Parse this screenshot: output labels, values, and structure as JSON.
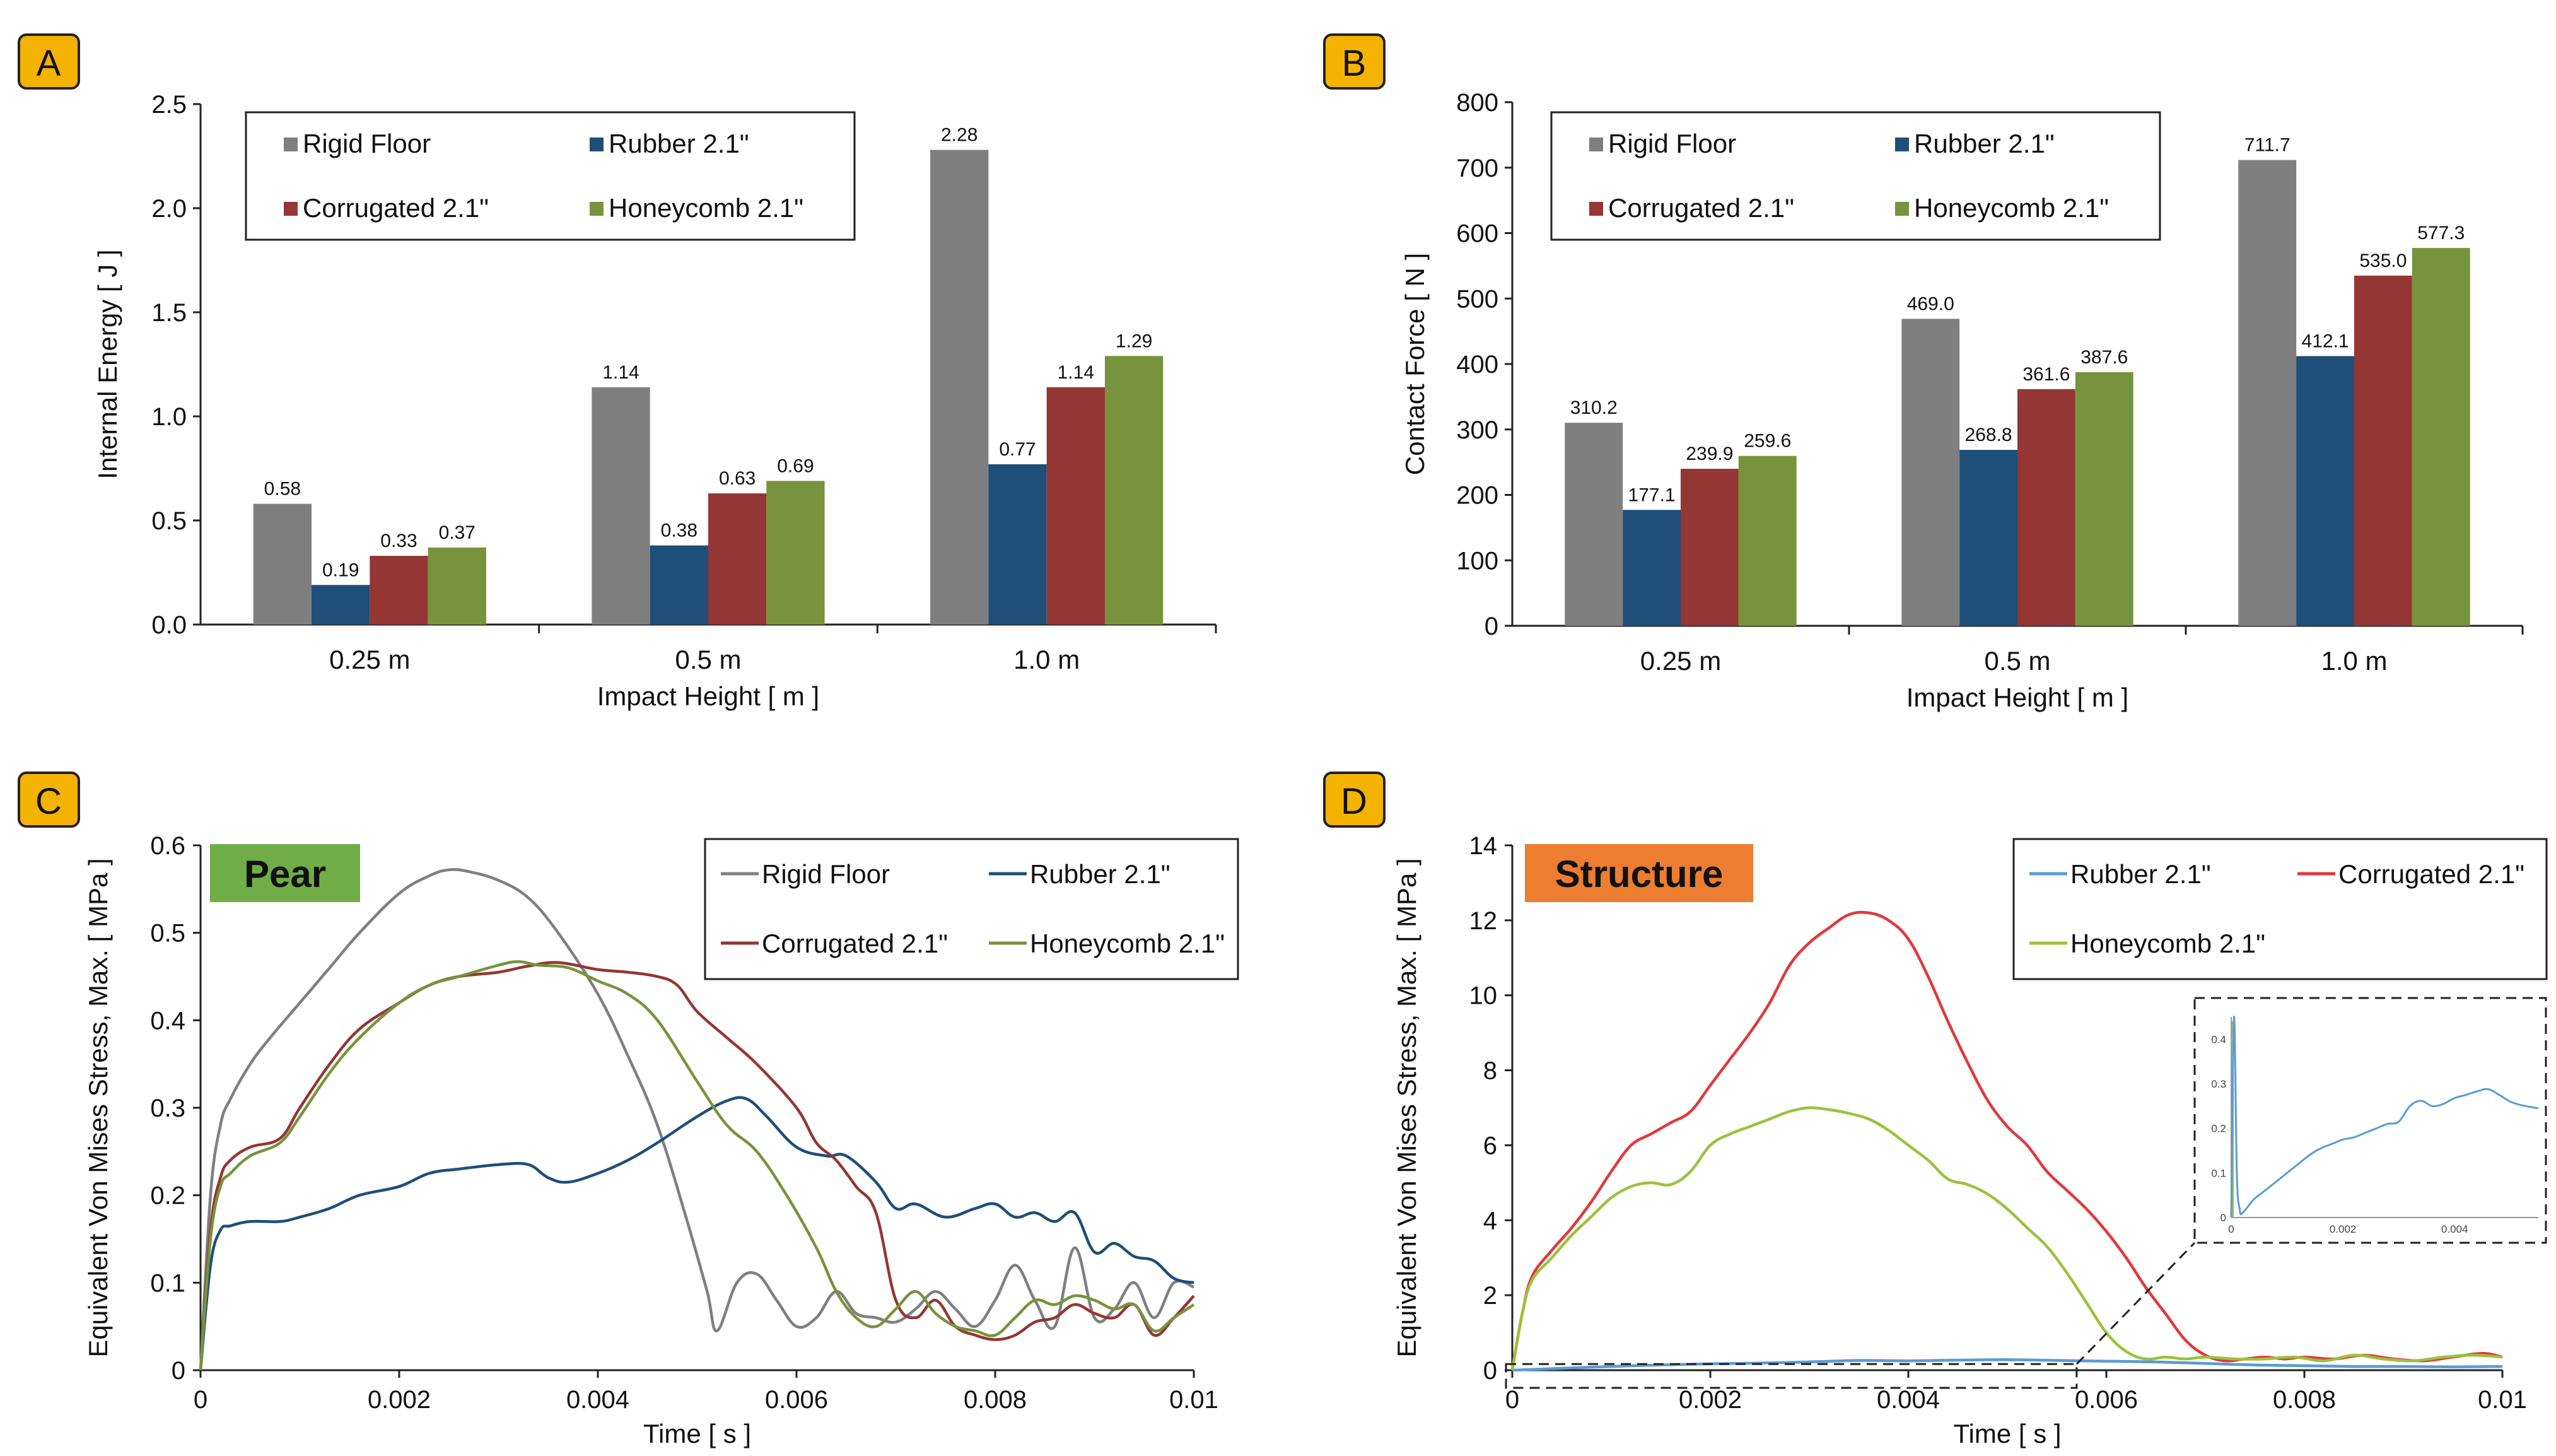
{
  "colors": {
    "rigid": "#7f7f7f",
    "rubber": "#1f4e79",
    "corrugated": "#943634",
    "honeycomb": "#77933c",
    "rubber_line_d": "#5b9bd5",
    "corrugated_line_d": "#e0393b",
    "honeycomb_line_d": "#9bc23c",
    "badge_yellow": "#f5b301",
    "pear_badge": "#70ad47",
    "structure_badge": "#ed7d31"
  },
  "panels": {
    "a": {
      "letter": "A"
    },
    "b": {
      "letter": "B"
    },
    "c": {
      "letter": "C",
      "badge": "Pear"
    },
    "d": {
      "letter": "D",
      "badge": "Structure"
    }
  },
  "chart_data": [
    {
      "id": "A",
      "type": "bar",
      "title": "",
      "xlabel": "Impact Height [ m ]",
      "ylabel": "Internal Energy [ J ]",
      "ylim": [
        0,
        2.5
      ],
      "yticks": [
        "0.0",
        "0.5",
        "1.0",
        "1.5",
        "2.0",
        "2.5"
      ],
      "categories": [
        "0.25 m",
        "0.5 m",
        "1.0 m"
      ],
      "legend": "top-left",
      "series": [
        {
          "name": "Rigid Floor",
          "color_key": "rigid",
          "values": [
            0.58,
            1.14,
            2.28
          ],
          "labels": [
            "0.58",
            "1.14",
            "2.28"
          ]
        },
        {
          "name": "Rubber 2.1\"",
          "color_key": "rubber",
          "values": [
            0.19,
            0.38,
            0.77
          ],
          "labels": [
            "0.19",
            "0.38",
            "0.77"
          ]
        },
        {
          "name": "Corrugated 2.1\"",
          "color_key": "corrugated",
          "values": [
            0.33,
            0.63,
            1.14
          ],
          "labels": [
            "0.33",
            "0.63",
            "1.14"
          ]
        },
        {
          "name": "Honeycomb 2.1\"",
          "color_key": "honeycomb",
          "values": [
            0.37,
            0.69,
            1.29
          ],
          "labels": [
            "0.37",
            "0.69",
            "1.29"
          ]
        }
      ]
    },
    {
      "id": "B",
      "type": "bar",
      "title": "",
      "xlabel": "Impact Height [ m ]",
      "ylabel": "Contact Force [ N ]",
      "ylim": [
        0,
        800
      ],
      "yticks": [
        "0",
        "100",
        "200",
        "300",
        "400",
        "500",
        "600",
        "700",
        "800"
      ],
      "categories": [
        "0.25 m",
        "0.5 m",
        "1.0 m"
      ],
      "legend": "top-left",
      "series": [
        {
          "name": "Rigid Floor",
          "color_key": "rigid",
          "values": [
            310.2,
            469.0,
            711.7
          ],
          "labels": [
            "310.2",
            "469.0",
            "711.7"
          ]
        },
        {
          "name": "Rubber 2.1\"",
          "color_key": "rubber",
          "values": [
            177.1,
            268.8,
            412.1
          ],
          "labels": [
            "177.1",
            "268.8",
            "412.1"
          ]
        },
        {
          "name": "Corrugated 2.1\"",
          "color_key": "corrugated",
          "values": [
            239.9,
            361.6,
            535.0
          ],
          "labels": [
            "239.9",
            "361.6",
            "535.0"
          ]
        },
        {
          "name": "Honeycomb 2.1\"",
          "color_key": "honeycomb",
          "values": [
            259.6,
            387.6,
            577.3
          ],
          "labels": [
            "259.6",
            "387.6",
            "577.3"
          ]
        }
      ]
    },
    {
      "id": "C",
      "type": "line",
      "title": "Pear",
      "xlabel": "Time [ s ]",
      "ylabel": "Equivalent Von Mises Stress, Max. [ MPa ]",
      "xlim": [
        0,
        0.01
      ],
      "ylim": [
        0,
        0.6
      ],
      "xticks": [
        "0",
        "0.002",
        "0.004",
        "0.006",
        "0.008",
        "0.01"
      ],
      "yticks": [
        "0",
        "0.1",
        "0.2",
        "0.3",
        "0.4",
        "0.5",
        "0.6"
      ],
      "legend": "top-right",
      "series": [
        {
          "name": "Rigid Floor",
          "color_key": "rigid",
          "x": [
            0,
            0.0001,
            0.0002,
            0.0003,
            0.0005,
            0.0007,
            0.001,
            0.0013,
            0.0016,
            0.002,
            0.0023,
            0.0025,
            0.0027,
            0.003,
            0.0033,
            0.0036,
            0.004,
            0.0043,
            0.0046,
            0.0049,
            0.0051,
            0.0052,
            0.0054,
            0.0056,
            0.0058,
            0.006,
            0.0062,
            0.0064,
            0.0066,
            0.0068,
            0.007,
            0.0072,
            0.0074,
            0.0076,
            0.0078,
            0.008,
            0.0082,
            0.0084,
            0.0086,
            0.0088,
            0.009,
            0.0092,
            0.0094,
            0.0096,
            0.0098,
            0.01
          ],
          "y": [
            0,
            0.2,
            0.28,
            0.31,
            0.35,
            0.38,
            0.42,
            0.46,
            0.5,
            0.545,
            0.565,
            0.572,
            0.57,
            0.56,
            0.54,
            0.5,
            0.43,
            0.36,
            0.28,
            0.17,
            0.09,
            0.045,
            0.1,
            0.11,
            0.08,
            0.05,
            0.06,
            0.09,
            0.065,
            0.06,
            0.055,
            0.07,
            0.09,
            0.07,
            0.05,
            0.08,
            0.12,
            0.08,
            0.05,
            0.14,
            0.06,
            0.07,
            0.1,
            0.06,
            0.1,
            0.095
          ]
        },
        {
          "name": "Rubber 2.1\"",
          "color_key": "rubber",
          "x": [
            0,
            0.0001,
            0.0002,
            0.0003,
            0.0005,
            0.0008,
            0.001,
            0.0013,
            0.0016,
            0.002,
            0.0023,
            0.0026,
            0.003,
            0.0033,
            0.0035,
            0.0037,
            0.004,
            0.0043,
            0.0046,
            0.005,
            0.0053,
            0.0055,
            0.0057,
            0.006,
            0.0063,
            0.0065,
            0.0068,
            0.007,
            0.0072,
            0.0075,
            0.0078,
            0.008,
            0.0082,
            0.0084,
            0.0086,
            0.0088,
            0.009,
            0.0092,
            0.0094,
            0.0096,
            0.0098,
            0.01
          ],
          "y": [
            0,
            0.12,
            0.16,
            0.165,
            0.17,
            0.17,
            0.175,
            0.185,
            0.2,
            0.21,
            0.225,
            0.23,
            0.235,
            0.235,
            0.22,
            0.215,
            0.225,
            0.24,
            0.26,
            0.29,
            0.308,
            0.31,
            0.29,
            0.255,
            0.245,
            0.245,
            0.215,
            0.185,
            0.19,
            0.175,
            0.185,
            0.19,
            0.175,
            0.18,
            0.17,
            0.18,
            0.135,
            0.145,
            0.13,
            0.125,
            0.105,
            0.1
          ]
        },
        {
          "name": "Corrugated 2.1\"",
          "color_key": "corrugated",
          "x": [
            0,
            0.0001,
            0.0002,
            0.0003,
            0.0005,
            0.0008,
            0.001,
            0.0013,
            0.0016,
            0.002,
            0.0023,
            0.0026,
            0.003,
            0.0033,
            0.0036,
            0.004,
            0.0043,
            0.0046,
            0.0048,
            0.005,
            0.0053,
            0.0056,
            0.006,
            0.0062,
            0.0064,
            0.0066,
            0.0068,
            0.007,
            0.0072,
            0.0074,
            0.0076,
            0.0078,
            0.008,
            0.0082,
            0.0084,
            0.0086,
            0.0088,
            0.009,
            0.0092,
            0.0094,
            0.0096,
            0.0098,
            0.01
          ],
          "y": [
            0,
            0.16,
            0.22,
            0.24,
            0.255,
            0.265,
            0.3,
            0.35,
            0.39,
            0.42,
            0.44,
            0.45,
            0.455,
            0.462,
            0.466,
            0.458,
            0.455,
            0.45,
            0.44,
            0.41,
            0.38,
            0.35,
            0.3,
            0.26,
            0.24,
            0.21,
            0.18,
            0.08,
            0.06,
            0.08,
            0.05,
            0.04,
            0.035,
            0.04,
            0.055,
            0.06,
            0.075,
            0.065,
            0.06,
            0.075,
            0.04,
            0.06,
            0.085
          ]
        },
        {
          "name": "Honeycomb 2.1\"",
          "color_key": "honeycomb",
          "x": [
            0,
            0.0001,
            0.0002,
            0.0003,
            0.0005,
            0.0008,
            0.001,
            0.0013,
            0.0016,
            0.002,
            0.0023,
            0.0026,
            0.003,
            0.0032,
            0.0034,
            0.0037,
            0.004,
            0.0043,
            0.0046,
            0.005,
            0.0053,
            0.0056,
            0.0059,
            0.0062,
            0.0064,
            0.0066,
            0.0068,
            0.007,
            0.0072,
            0.0074,
            0.0076,
            0.0078,
            0.008,
            0.0082,
            0.0084,
            0.0086,
            0.0088,
            0.009,
            0.0092,
            0.0094,
            0.0096,
            0.0098,
            0.01
          ],
          "y": [
            0,
            0.15,
            0.21,
            0.225,
            0.245,
            0.26,
            0.29,
            0.34,
            0.38,
            0.42,
            0.44,
            0.45,
            0.463,
            0.467,
            0.463,
            0.46,
            0.445,
            0.43,
            0.4,
            0.33,
            0.28,
            0.25,
            0.2,
            0.14,
            0.09,
            0.06,
            0.05,
            0.07,
            0.09,
            0.065,
            0.05,
            0.045,
            0.04,
            0.06,
            0.08,
            0.075,
            0.085,
            0.08,
            0.07,
            0.075,
            0.045,
            0.06,
            0.075
          ]
        }
      ]
    },
    {
      "id": "D",
      "type": "line",
      "title": "Structure",
      "xlabel": "Time [ s ]",
      "ylabel": "Equivalent Von Mises Stress, Max. [ MPa ]",
      "xlim": [
        0,
        0.01
      ],
      "ylim": [
        0,
        14
      ],
      "xticks": [
        "0",
        "0.002",
        "0.004",
        "0.006",
        "0.008",
        "0.01"
      ],
      "yticks": [
        "0",
        "2",
        "4",
        "6",
        "8",
        "10",
        "12",
        "14"
      ],
      "legend": "top-right",
      "series": [
        {
          "name": "Rubber 2.1\"",
          "color_key": "rubber_line_d",
          "x": [
            0,
            0.0005,
            0.001,
            0.0015,
            0.002,
            0.0025,
            0.003,
            0.0035,
            0.004,
            0.0045,
            0.005,
            0.0055,
            0.006,
            0.0065,
            0.007,
            0.0075,
            0.008,
            0.0085,
            0.009,
            0.0095,
            0.01
          ],
          "y": [
            0,
            0.05,
            0.1,
            0.14,
            0.17,
            0.19,
            0.22,
            0.26,
            0.25,
            0.27,
            0.28,
            0.26,
            0.24,
            0.22,
            0.18,
            0.14,
            0.12,
            0.1,
            0.1,
            0.09,
            0.1
          ]
        },
        {
          "name": "Corrugated 2.1\"",
          "color_key": "corrugated_line_d",
          "x": [
            0,
            0.0001,
            0.0002,
            0.0004,
            0.0006,
            0.0008,
            0.001,
            0.0012,
            0.0014,
            0.0016,
            0.0018,
            0.002,
            0.0022,
            0.0024,
            0.0026,
            0.0028,
            0.003,
            0.0032,
            0.0034,
            0.0036,
            0.0038,
            0.004,
            0.0042,
            0.0044,
            0.0046,
            0.0048,
            0.005,
            0.0052,
            0.0054,
            0.0056,
            0.0058,
            0.006,
            0.0062,
            0.0064,
            0.0066,
            0.0068,
            0.007,
            0.0072,
            0.0074,
            0.0076,
            0.0078,
            0.008,
            0.0083,
            0.0086,
            0.0089,
            0.0092,
            0.0095,
            0.0098,
            0.01
          ],
          "y": [
            0,
            1.5,
            2.5,
            3.2,
            3.8,
            4.5,
            5.3,
            6.0,
            6.3,
            6.6,
            6.9,
            7.6,
            8.3,
            9.0,
            9.8,
            10.8,
            11.4,
            11.8,
            12.15,
            12.2,
            12.0,
            11.5,
            10.5,
            9.3,
            8.2,
            7.2,
            6.5,
            6.0,
            5.3,
            4.8,
            4.3,
            3.7,
            3.0,
            2.2,
            1.5,
            0.8,
            0.4,
            0.25,
            0.3,
            0.35,
            0.3,
            0.35,
            0.3,
            0.4,
            0.3,
            0.25,
            0.35,
            0.45,
            0.35
          ]
        },
        {
          "name": "Honeycomb 2.1\"",
          "color_key": "honeycomb_line_d",
          "x": [
            0,
            0.0001,
            0.0002,
            0.0004,
            0.0006,
            0.0008,
            0.001,
            0.0012,
            0.0014,
            0.0016,
            0.0018,
            0.002,
            0.0022,
            0.0024,
            0.0026,
            0.0028,
            0.003,
            0.0032,
            0.0034,
            0.0036,
            0.0038,
            0.004,
            0.0042,
            0.0044,
            0.0046,
            0.0048,
            0.005,
            0.0052,
            0.0054,
            0.0056,
            0.0058,
            0.006,
            0.0062,
            0.0064,
            0.0066,
            0.0068,
            0.007,
            0.0073,
            0.0076,
            0.0079,
            0.0082,
            0.0085,
            0.0088,
            0.0091,
            0.0094,
            0.0097,
            0.01
          ],
          "y": [
            0,
            1.5,
            2.4,
            3.0,
            3.6,
            4.1,
            4.6,
            4.9,
            5.0,
            4.95,
            5.3,
            6.0,
            6.3,
            6.5,
            6.7,
            6.9,
            7.0,
            6.95,
            6.85,
            6.7,
            6.4,
            6.0,
            5.6,
            5.1,
            4.95,
            4.7,
            4.3,
            3.8,
            3.3,
            2.6,
            1.8,
            1.0,
            0.5,
            0.3,
            0.35,
            0.3,
            0.35,
            0.3,
            0.3,
            0.35,
            0.25,
            0.4,
            0.3,
            0.25,
            0.35,
            0.4,
            0.35
          ]
        }
      ],
      "inset": {
        "series_name": "Rubber 2.1\"",
        "xlim": [
          0,
          0.0055
        ],
        "ylim": [
          0,
          0.45
        ],
        "xticks": [
          "0",
          "0.002",
          "0.004"
        ],
        "yticks": [
          "0",
          "0.1",
          "0.2",
          "0.3",
          "0.4"
        ],
        "x": [
          0,
          5e-05,
          0.0001,
          0.00015,
          0.0002,
          0.0004,
          0.0006,
          0.0008,
          0.001,
          0.0012,
          0.0014,
          0.0016,
          0.0018,
          0.002,
          0.0022,
          0.0024,
          0.0026,
          0.0028,
          0.003,
          0.0032,
          0.0034,
          0.0036,
          0.0038,
          0.004,
          0.0042,
          0.0044,
          0.0046,
          0.0048,
          0.005,
          0.0052,
          0.0055
        ],
        "y": [
          0,
          0.45,
          0.1,
          0.02,
          0.01,
          0.04,
          0.06,
          0.08,
          0.1,
          0.12,
          0.14,
          0.155,
          0.165,
          0.175,
          0.18,
          0.19,
          0.2,
          0.21,
          0.215,
          0.25,
          0.262,
          0.25,
          0.255,
          0.268,
          0.275,
          0.283,
          0.288,
          0.275,
          0.26,
          0.252,
          0.245
        ]
      }
    }
  ]
}
